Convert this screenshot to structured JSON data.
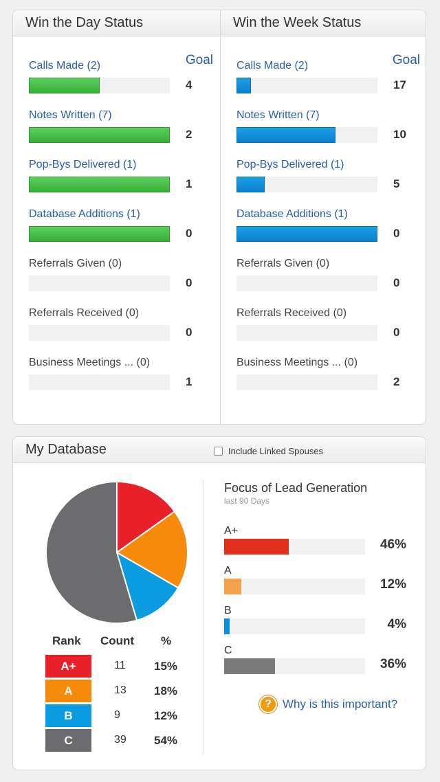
{
  "day_status": {
    "title": "Win the Day Status",
    "goal_header": "Goal",
    "metrics": [
      {
        "label": "Calls Made (2)",
        "goal": "4",
        "progress": 0.5
      },
      {
        "label": "Notes Written (7)",
        "goal": "2",
        "progress": 1.0
      },
      {
        "label": "Pop-Bys Delivered (1)",
        "goal": "1",
        "progress": 1.0
      },
      {
        "label": "Database Additions (1)",
        "goal": "0",
        "progress": 1.0
      },
      {
        "label": "Referrals Given (0)",
        "goal": "0",
        "progress": 0
      },
      {
        "label": "Referrals Received (0)",
        "goal": "0",
        "progress": 0
      },
      {
        "label": "Business Meetings ... (0)",
        "goal": "1",
        "progress": 0
      }
    ]
  },
  "week_status": {
    "title": "Win the Week Status",
    "goal_header": "Goal",
    "metrics": [
      {
        "label": "Calls Made (2)",
        "goal": "17",
        "progress": 0.1
      },
      {
        "label": "Notes Written (7)",
        "goal": "10",
        "progress": 0.7
      },
      {
        "label": "Pop-Bys Delivered (1)",
        "goal": "5",
        "progress": 0.2
      },
      {
        "label": "Database Additions (1)",
        "goal": "0",
        "progress": 1.0
      },
      {
        "label": "Referrals Given (0)",
        "goal": "0",
        "progress": 0
      },
      {
        "label": "Referrals Received (0)",
        "goal": "0",
        "progress": 0
      },
      {
        "label": "Business Meetings ... (0)",
        "goal": "2",
        "progress": 0
      }
    ]
  },
  "database": {
    "title": "My Database",
    "include_spouses_label": "Include Linked Spouses",
    "include_spouses_checked": false,
    "rank_table": {
      "headers": [
        "Rank",
        "Count",
        "%"
      ],
      "rows": [
        {
          "rank": "A+",
          "count": "11",
          "pct": "15%",
          "color": "#e8202a"
        },
        {
          "rank": "A",
          "count": "13",
          "pct": "18%",
          "color": "#f58a0b"
        },
        {
          "rank": "B",
          "count": "9",
          "pct": "12%",
          "color": "#0b9be0"
        },
        {
          "rank": "C",
          "count": "39",
          "pct": "54%",
          "color": "#6c6c6e"
        }
      ]
    },
    "focus": {
      "title": "Focus of Lead Generation",
      "subtitle": "last 90 Days",
      "rows": [
        {
          "label": "A+",
          "pct": "46%",
          "value": 0.46,
          "color": "#e0301c"
        },
        {
          "label": "A",
          "pct": "12%",
          "value": 0.12,
          "color": "#f5a04a"
        },
        {
          "label": "B",
          "pct": "4%",
          "value": 0.04,
          "color": "#0b8fd8"
        },
        {
          "label": "C",
          "pct": "36%",
          "value": 0.36,
          "color": "#7a7a7a"
        }
      ]
    },
    "help_icon": "question-icon",
    "help_label": "Why is this important?"
  },
  "chart_data": {
    "type": "pie",
    "categories": [
      "A+",
      "A",
      "B",
      "C"
    ],
    "values": [
      15,
      18,
      12,
      54
    ],
    "colors": [
      "#e8202a",
      "#f58a0b",
      "#0b9be0",
      "#6c6c6e"
    ],
    "legend": "table-below"
  }
}
